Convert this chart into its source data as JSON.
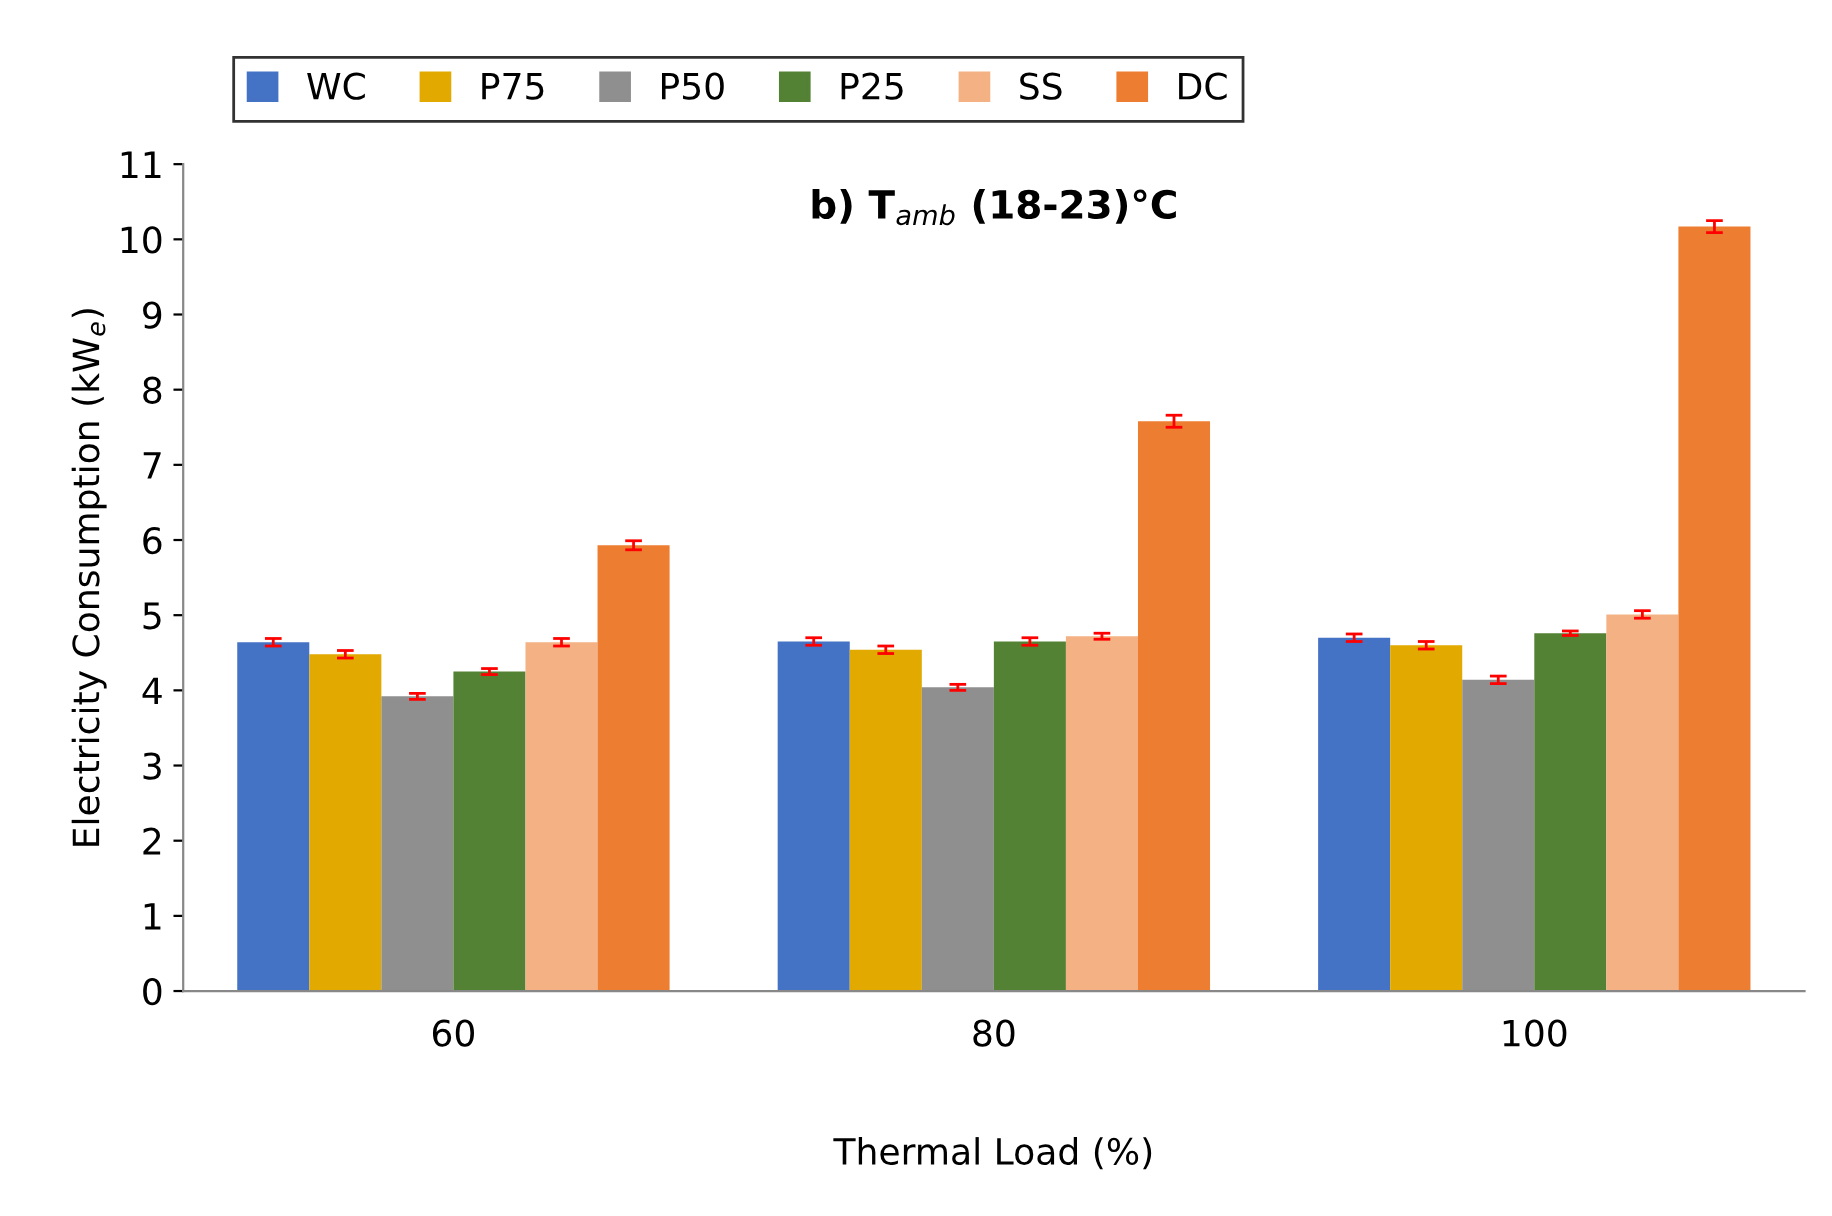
{
  "chart_data": {
    "type": "bar",
    "title": "b) T$_{amb}$ (18-23)°C",
    "xlabel": "Thermal Load (%)",
    "ylabel": "Electricity Consumption (kW$_{e}$)",
    "categories": [
      "60",
      "80",
      "100"
    ],
    "series": [
      {
        "name": "WC",
        "color": "#4472c4",
        "values": [
          4.64,
          4.65,
          4.7
        ],
        "errors": [
          0.05,
          0.05,
          0.05
        ]
      },
      {
        "name": "P75",
        "color": "#e2a900",
        "values": [
          4.48,
          4.54,
          4.6
        ],
        "errors": [
          0.05,
          0.05,
          0.05
        ]
      },
      {
        "name": "P50",
        "color": "#8f8f8f",
        "values": [
          3.92,
          4.04,
          4.14
        ],
        "errors": [
          0.04,
          0.04,
          0.05
        ]
      },
      {
        "name": "P25",
        "color": "#548235",
        "values": [
          4.25,
          4.65,
          4.76
        ],
        "errors": [
          0.04,
          0.05,
          0.03
        ]
      },
      {
        "name": "SS",
        "color": "#f4b183",
        "values": [
          4.64,
          4.72,
          5.01
        ],
        "errors": [
          0.05,
          0.04,
          0.05
        ]
      },
      {
        "name": "DC",
        "color": "#ed7d31",
        "values": [
          5.93,
          7.58,
          10.17
        ],
        "errors": [
          0.06,
          0.08,
          0.08
        ]
      }
    ],
    "ylim": [
      0,
      11
    ],
    "yticks": [
      0,
      1,
      2,
      3,
      4,
      5,
      6,
      7,
      8,
      9,
      10,
      11
    ],
    "grid": false,
    "legend": "top"
  }
}
